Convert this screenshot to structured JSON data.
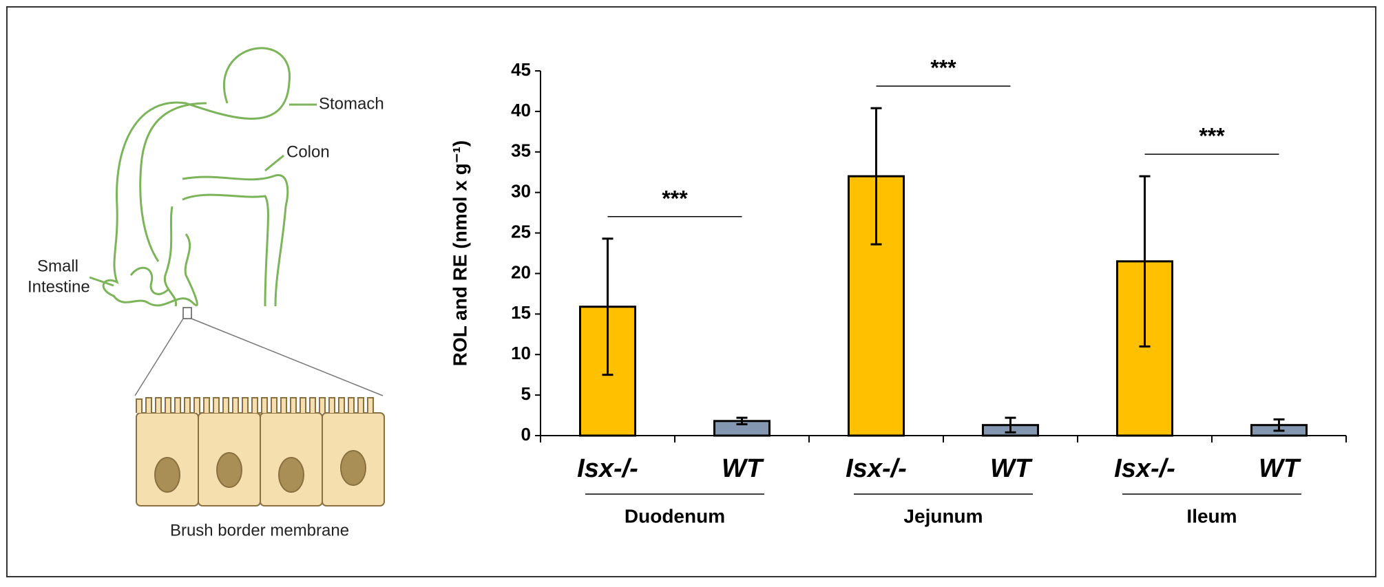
{
  "chart_data": {
    "type": "bar",
    "ylabel": "ROL and RE  (nmol x g⁻¹)",
    "categories": [
      "Isx-/-",
      "WT",
      "Isx-/-",
      "WT",
      "Isx-/-",
      "WT"
    ],
    "groups": [
      "Duodenum",
      "Jejunum",
      "Ileum"
    ],
    "significance": [
      "***",
      "***",
      "***"
    ],
    "values": [
      15.9,
      1.8,
      32.0,
      1.3,
      21.5,
      1.3
    ],
    "errors": [
      8.4,
      0.4,
      8.4,
      0.9,
      10.5,
      0.7
    ],
    "colors": [
      "#FFC000",
      "#8497B0",
      "#FFC000",
      "#8497B0",
      "#FFC000",
      "#8497B0"
    ],
    "ylim": [
      0,
      45
    ],
    "yticks": [
      0,
      5,
      10,
      15,
      20,
      25,
      30,
      35,
      40,
      45
    ]
  },
  "diagram": {
    "labels": {
      "stomach": "Stomach",
      "colon": "Colon",
      "small_intestine": [
        "Small",
        "Intestine"
      ],
      "caption": "Brush border membrane"
    }
  }
}
